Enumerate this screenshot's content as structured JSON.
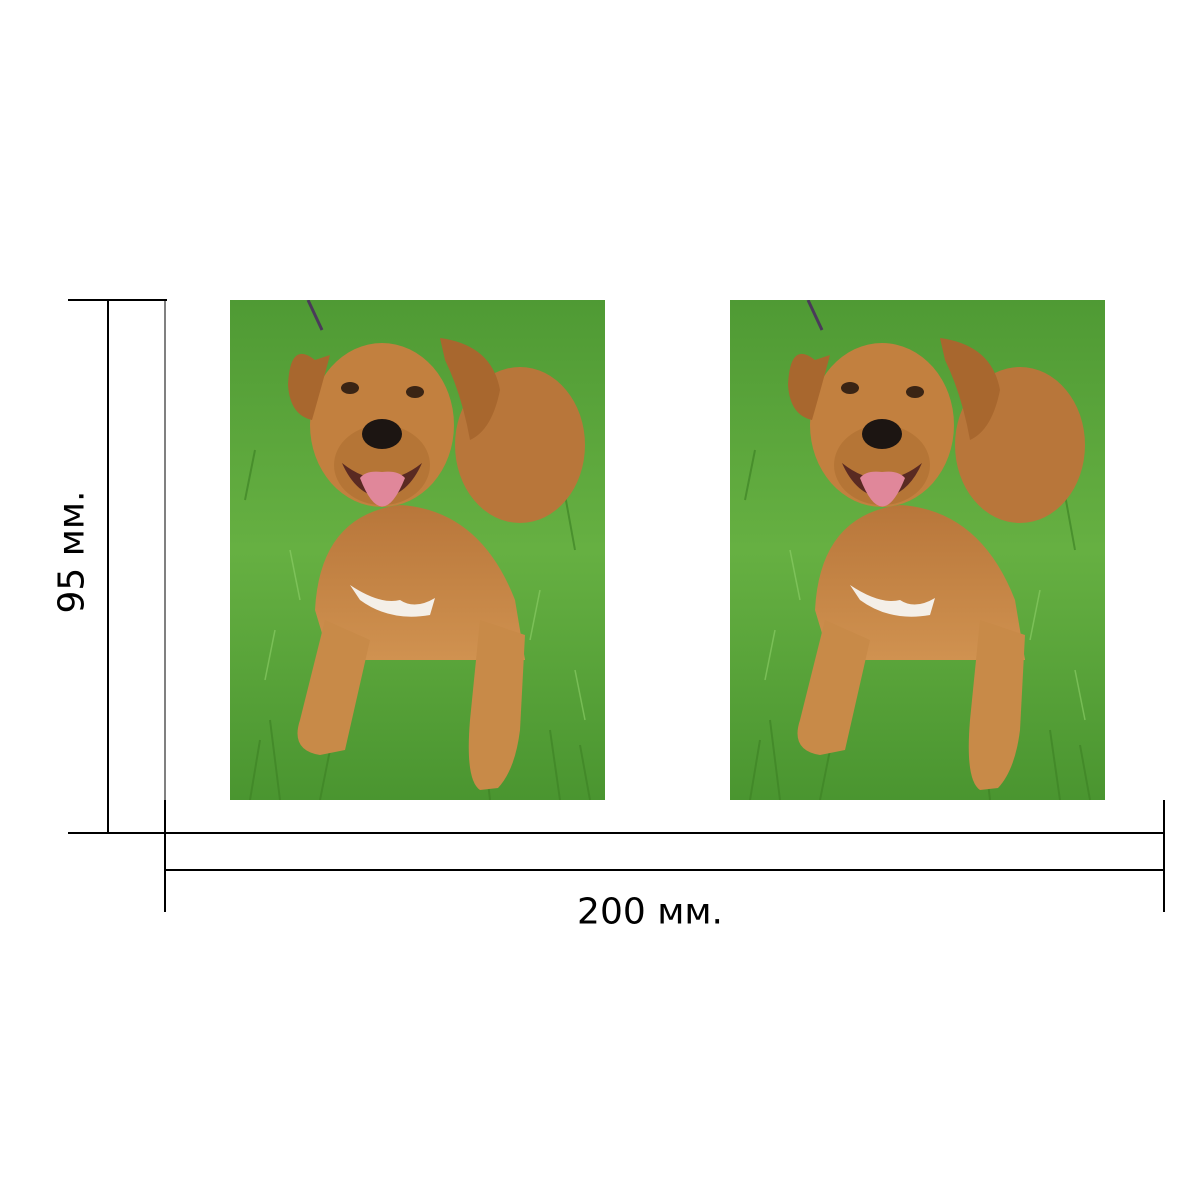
{
  "dimensions": {
    "width_label": "200 мм.",
    "height_label": "95 мм."
  },
  "photos": [
    {
      "subject": "dog-on-grass"
    },
    {
      "subject": "dog-on-grass"
    }
  ],
  "colors": {
    "line": "#000000",
    "grass": "#5aa33a",
    "fur": "#c98a45",
    "background": "#ffffff"
  }
}
